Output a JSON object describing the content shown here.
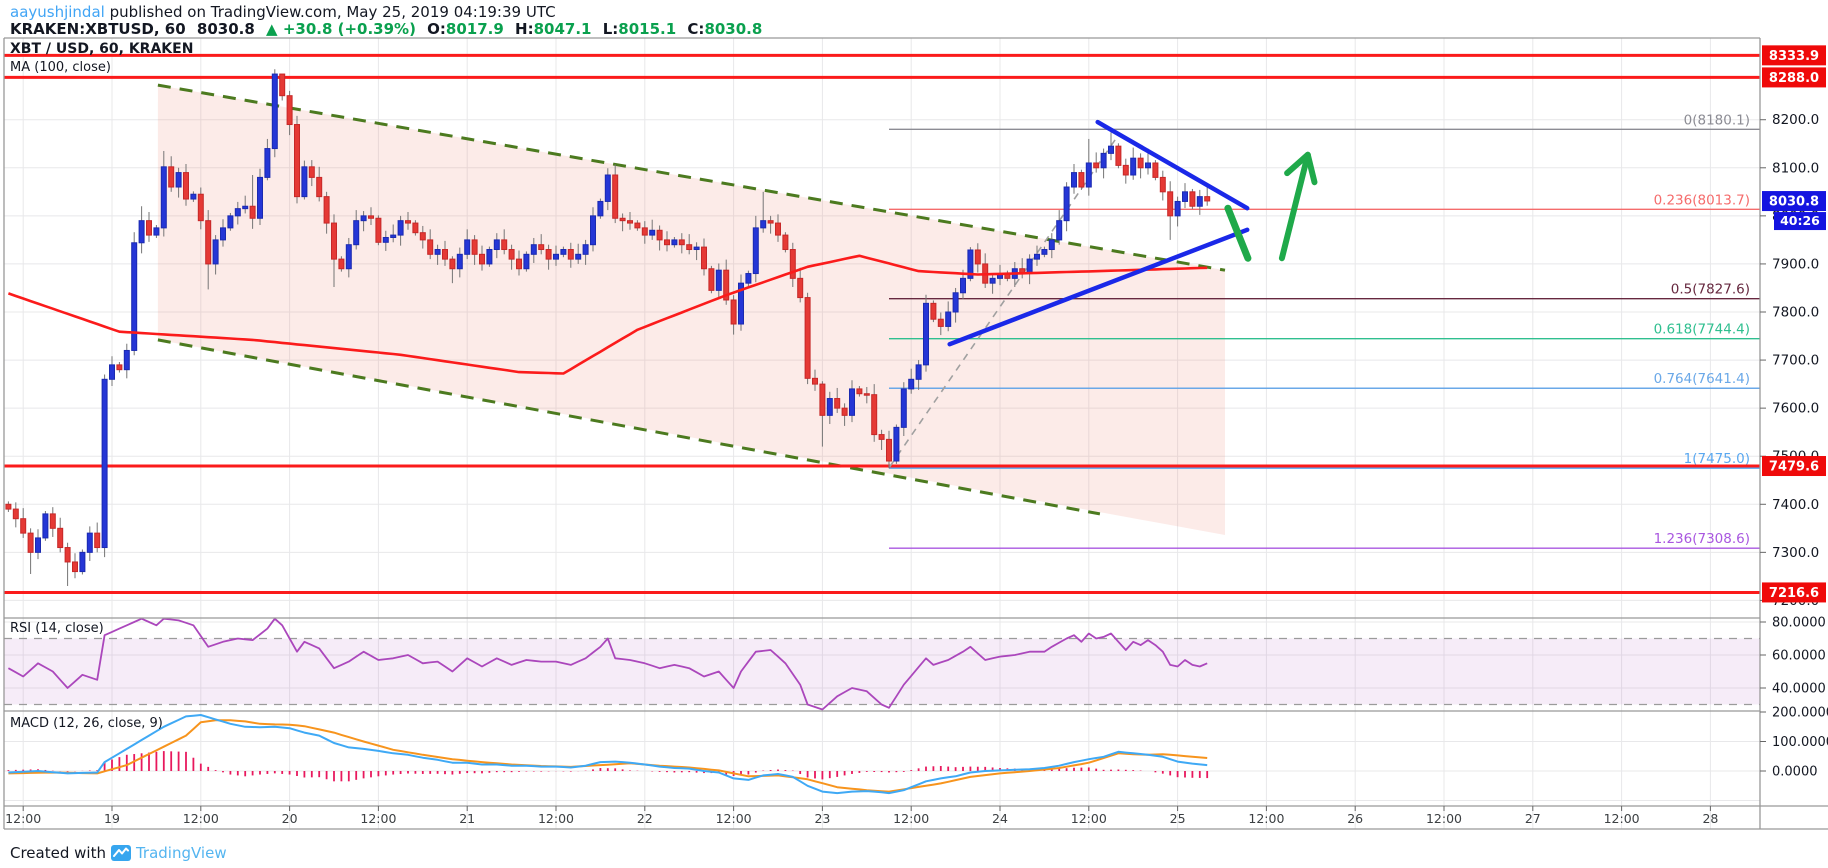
{
  "header": {
    "username": "aayushjindal",
    "attribution_rest": " published on TradingView.com, May 25, 2019 04:19:39 UTC",
    "symbol_title": "KRAKEN:XBTUSD, 60",
    "last_price": "8030.8",
    "change_arrow": "▲",
    "change_text": "+30.8 (+0.39%)",
    "o_label": "O:",
    "o_val": "8017.9",
    "h_label": "H:",
    "h_val": "8047.1",
    "l_label": "L:",
    "l_val": "8015.1",
    "c_label": "C:",
    "c_val": "8030.8"
  },
  "legend": {
    "symbol": "XBT / USD, 60, KRAKEN",
    "ma": "MA (100, close)"
  },
  "panels": {
    "rsi_label": "RSI (14, close)",
    "macd_label": "MACD (12, 26, close, 9)"
  },
  "footer": {
    "created_with": "Created with",
    "brand": "TradingView",
    "logo_icon": "tradingview-logo"
  },
  "colors": {
    "up_candle": "#2536d6",
    "up_border": "#1b2ab0",
    "down_candle": "#e53935",
    "down_border": "#c62828",
    "wick": "#757575",
    "ma_line": "#fb1b1b",
    "level_red": "#fb1b1b",
    "badge_red": "#ef0a0a",
    "badge_blue": "#1414e0",
    "rsi_line": "#ab47bc",
    "macd_line": "#3fa9f5",
    "signal_line": "#f7941d",
    "hist": "#e8185d",
    "wedge_fill": "rgba(235,130,115,0.16)",
    "wedge_dash": "#4c7a1f",
    "blue_annot": "#1a28e8",
    "green_annot": "#1fa94a",
    "gray_dash": "#a0a0a0",
    "grid": "#e8e8ea",
    "frame": "#999999",
    "axis_text": "#131722"
  },
  "chart_data": {
    "type": "candlestick",
    "title": "XBT / USD, 60, KRAKEN",
    "interval_hours": 1,
    "first_open": 7400,
    "closes": [
      7390,
      7370,
      7340,
      7300,
      7330,
      7380,
      7350,
      7310,
      7280,
      7260,
      7300,
      7340,
      7310,
      7660,
      7690,
      7680,
      7720,
      7944,
      7990,
      7960,
      7975,
      8102,
      8060,
      8090,
      8035,
      8045,
      7990,
      7900,
      7950,
      7975,
      8000,
      8015,
      8020,
      7995,
      8080,
      8140,
      8295,
      8250,
      8190,
      8040,
      8102,
      8080,
      8040,
      7985,
      7910,
      7890,
      7940,
      7990,
      8000,
      7995,
      7945,
      7955,
      7960,
      7990,
      7985,
      7965,
      7950,
      7920,
      7930,
      7910,
      7890,
      7920,
      7950,
      7920,
      7900,
      7930,
      7950,
      7930,
      7910,
      7890,
      7920,
      7940,
      7930,
      7910,
      7920,
      7930,
      7910,
      7920,
      7940,
      8000,
      8030,
      8085,
      7995,
      7990,
      7985,
      7975,
      7960,
      7970,
      7950,
      7940,
      7950,
      7940,
      7930,
      7935,
      7890,
      7845,
      7887,
      7825,
      7775,
      7860,
      7880,
      7975,
      7990,
      7985,
      7960,
      7930,
      7870,
      7830,
      7662,
      7650,
      7585,
      7620,
      7600,
      7585,
      7640,
      7630,
      7628,
      7545,
      7535,
      7490,
      7560,
      7640,
      7660,
      7690,
      7818,
      7785,
      7770,
      7800,
      7840,
      7870,
      7929,
      7900,
      7860,
      7870,
      7880,
      7870,
      7890,
      7880,
      7910,
      7920,
      7930,
      7950,
      7990,
      8060,
      8090,
      8060,
      8110,
      8100,
      8130,
      8145,
      8105,
      8085,
      8120,
      8100,
      8110,
      8080,
      8050,
      8000,
      8030,
      8050,
      8020,
      8040,
      8031
    ],
    "extreme_highs": {
      "18": 8020,
      "21": 8135,
      "33": 8085,
      "35": 8160,
      "36": 8305,
      "37": 8290,
      "40": 8115,
      "101": 8000,
      "102": 8050,
      "146": 8160,
      "149": 8174,
      "154": 8140
    },
    "extreme_lows": {
      "3": 7255,
      "8": 7230,
      "13": 7290,
      "27": 7847,
      "44": 7852,
      "60": 7860,
      "108": 7650,
      "110": 7520,
      "117": 7530,
      "119": 7475,
      "157": 7950
    },
    "ma100_keypoints": [
      [
        -1,
        7844
      ],
      [
        15,
        7759
      ],
      [
        33,
        7742
      ],
      [
        53,
        7711
      ],
      [
        69,
        7675
      ],
      [
        75,
        7672
      ],
      [
        85,
        7763
      ],
      [
        97,
        7835
      ],
      [
        108,
        7894
      ],
      [
        115,
        7917
      ],
      [
        123,
        7885
      ],
      [
        131,
        7878
      ],
      [
        145,
        7884
      ],
      [
        162,
        7892
      ]
    ],
    "rsi_keypoints": [
      [
        0,
        52
      ],
      [
        2,
        47
      ],
      [
        4,
        55
      ],
      [
        6,
        50
      ],
      [
        8,
        40
      ],
      [
        10,
        48
      ],
      [
        12,
        45
      ],
      [
        13,
        72
      ],
      [
        17,
        80
      ],
      [
        18,
        82
      ],
      [
        20,
        78
      ],
      [
        21,
        82
      ],
      [
        23,
        81
      ],
      [
        25,
        78
      ],
      [
        27,
        65
      ],
      [
        29,
        68
      ],
      [
        31,
        70
      ],
      [
        33,
        69
      ],
      [
        35,
        76
      ],
      [
        36,
        82
      ],
      [
        37,
        78
      ],
      [
        39,
        62
      ],
      [
        40,
        68
      ],
      [
        42,
        64
      ],
      [
        44,
        52
      ],
      [
        46,
        56
      ],
      [
        48,
        62
      ],
      [
        50,
        57
      ],
      [
        52,
        58
      ],
      [
        54,
        60
      ],
      [
        56,
        55
      ],
      [
        58,
        56
      ],
      [
        60,
        50
      ],
      [
        62,
        58
      ],
      [
        64,
        53
      ],
      [
        66,
        58
      ],
      [
        68,
        54
      ],
      [
        70,
        57
      ],
      [
        72,
        56
      ],
      [
        74,
        56
      ],
      [
        76,
        54
      ],
      [
        78,
        58
      ],
      [
        80,
        65
      ],
      [
        81,
        70
      ],
      [
        82,
        58
      ],
      [
        84,
        57
      ],
      [
        86,
        55
      ],
      [
        88,
        52
      ],
      [
        90,
        54
      ],
      [
        92,
        52
      ],
      [
        94,
        47
      ],
      [
        96,
        50
      ],
      [
        98,
        40
      ],
      [
        99,
        50
      ],
      [
        101,
        62
      ],
      [
        103,
        63
      ],
      [
        105,
        55
      ],
      [
        107,
        42
      ],
      [
        108,
        30
      ],
      [
        110,
        27
      ],
      [
        112,
        35
      ],
      [
        114,
        40
      ],
      [
        116,
        38
      ],
      [
        118,
        30
      ],
      [
        119,
        28
      ],
      [
        121,
        42
      ],
      [
        124,
        58
      ],
      [
        125,
        54
      ],
      [
        127,
        57
      ],
      [
        129,
        62
      ],
      [
        130,
        65
      ],
      [
        132,
        57
      ],
      [
        134,
        59
      ],
      [
        136,
        60
      ],
      [
        138,
        62
      ],
      [
        140,
        62
      ],
      [
        141,
        65
      ],
      [
        143,
        70
      ],
      [
        144,
        72
      ],
      [
        145,
        68
      ],
      [
        146,
        73
      ],
      [
        147,
        70
      ],
      [
        148,
        71
      ],
      [
        149,
        73
      ],
      [
        150,
        68
      ],
      [
        151,
        63
      ],
      [
        152,
        68
      ],
      [
        153,
        66
      ],
      [
        154,
        69
      ],
      [
        155,
        66
      ],
      [
        156,
        62
      ],
      [
        157,
        54
      ],
      [
        158,
        53
      ],
      [
        159,
        57
      ],
      [
        160,
        54
      ],
      [
        161,
        53
      ],
      [
        162,
        55
      ]
    ],
    "macd_keypoints": [
      [
        0,
        -5
      ],
      [
        4,
        0
      ],
      [
        8,
        -8
      ],
      [
        12,
        -5
      ],
      [
        13,
        30
      ],
      [
        17,
        90
      ],
      [
        21,
        150
      ],
      [
        24,
        185
      ],
      [
        26,
        190
      ],
      [
        28,
        175
      ],
      [
        30,
        160
      ],
      [
        32,
        150
      ],
      [
        34,
        148
      ],
      [
        36,
        150
      ],
      [
        38,
        145
      ],
      [
        40,
        130
      ],
      [
        42,
        120
      ],
      [
        44,
        95
      ],
      [
        46,
        80
      ],
      [
        48,
        75
      ],
      [
        50,
        68
      ],
      [
        52,
        60
      ],
      [
        54,
        55
      ],
      [
        56,
        45
      ],
      [
        58,
        38
      ],
      [
        60,
        28
      ],
      [
        62,
        28
      ],
      [
        64,
        22
      ],
      [
        66,
        22
      ],
      [
        68,
        18
      ],
      [
        70,
        18
      ],
      [
        72,
        15
      ],
      [
        74,
        15
      ],
      [
        76,
        12
      ],
      [
        78,
        18
      ],
      [
        80,
        30
      ],
      [
        82,
        32
      ],
      [
        84,
        28
      ],
      [
        86,
        22
      ],
      [
        88,
        15
      ],
      [
        90,
        10
      ],
      [
        92,
        8
      ],
      [
        94,
        0
      ],
      [
        96,
        -5
      ],
      [
        98,
        -25
      ],
      [
        100,
        -30
      ],
      [
        102,
        -15
      ],
      [
        104,
        -10
      ],
      [
        106,
        -20
      ],
      [
        108,
        -50
      ],
      [
        110,
        -70
      ],
      [
        112,
        -75
      ],
      [
        114,
        -70
      ],
      [
        116,
        -68
      ],
      [
        118,
        -72
      ],
      [
        119,
        -75
      ],
      [
        121,
        -65
      ],
      [
        124,
        -35
      ],
      [
        126,
        -25
      ],
      [
        128,
        -18
      ],
      [
        130,
        -5
      ],
      [
        132,
        0
      ],
      [
        134,
        2
      ],
      [
        136,
        4
      ],
      [
        138,
        6
      ],
      [
        140,
        10
      ],
      [
        142,
        18
      ],
      [
        144,
        30
      ],
      [
        146,
        40
      ],
      [
        148,
        48
      ],
      [
        150,
        65
      ],
      [
        152,
        60
      ],
      [
        154,
        55
      ],
      [
        156,
        48
      ],
      [
        158,
        32
      ],
      [
        160,
        25
      ],
      [
        162,
        20
      ]
    ],
    "signal_keypoints": [
      [
        0,
        -8
      ],
      [
        6,
        -5
      ],
      [
        12,
        -8
      ],
      [
        16,
        20
      ],
      [
        20,
        70
      ],
      [
        24,
        120
      ],
      [
        26,
        165
      ],
      [
        28,
        172
      ],
      [
        30,
        172
      ],
      [
        32,
        168
      ],
      [
        34,
        160
      ],
      [
        36,
        158
      ],
      [
        38,
        157
      ],
      [
        40,
        152
      ],
      [
        44,
        130
      ],
      [
        48,
        100
      ],
      [
        52,
        72
      ],
      [
        56,
        55
      ],
      [
        60,
        40
      ],
      [
        64,
        30
      ],
      [
        68,
        22
      ],
      [
        72,
        17
      ],
      [
        76,
        14
      ],
      [
        80,
        20
      ],
      [
        84,
        26
      ],
      [
        88,
        18
      ],
      [
        92,
        12
      ],
      [
        96,
        2
      ],
      [
        100,
        -18
      ],
      [
        104,
        -15
      ],
      [
        108,
        -28
      ],
      [
        112,
        -55
      ],
      [
        116,
        -65
      ],
      [
        119,
        -70
      ],
      [
        122,
        -58
      ],
      [
        126,
        -42
      ],
      [
        130,
        -20
      ],
      [
        134,
        -8
      ],
      [
        138,
        0
      ],
      [
        142,
        10
      ],
      [
        146,
        28
      ],
      [
        150,
        60
      ],
      [
        152,
        57
      ],
      [
        154,
        55
      ],
      [
        156,
        57
      ],
      [
        158,
        53
      ],
      [
        160,
        48
      ],
      [
        162,
        44
      ]
    ],
    "price_axis_ticks": [
      [
        8200,
        "8200.0"
      ],
      [
        8100,
        "8100.0"
      ],
      [
        8000,
        "8000.0"
      ],
      [
        7900,
        "7900.0"
      ],
      [
        7800,
        "7800.0"
      ],
      [
        7700,
        "7700.0"
      ],
      [
        7600,
        "7600.0"
      ],
      [
        7500,
        "7500.0"
      ],
      [
        7400,
        "7400.0"
      ],
      [
        7300,
        "7300.0"
      ],
      [
        7200,
        "7200.0"
      ]
    ],
    "time_axis_ticks": [
      [
        2,
        "12:00"
      ],
      [
        14,
        "19"
      ],
      [
        26,
        "12:00"
      ],
      [
        38,
        "20"
      ],
      [
        50,
        "12:00"
      ],
      [
        62,
        "21"
      ],
      [
        74,
        "12:00"
      ],
      [
        86,
        "22"
      ],
      [
        98,
        "12:00"
      ],
      [
        110,
        "23"
      ],
      [
        122,
        "12:00"
      ],
      [
        134,
        "24"
      ],
      [
        146,
        "12:00"
      ],
      [
        158,
        "25"
      ],
      [
        170,
        "12:00"
      ],
      [
        182,
        "26"
      ],
      [
        194,
        "12:00"
      ],
      [
        206,
        "27"
      ],
      [
        218,
        "12:00"
      ],
      [
        230,
        "28"
      ]
    ],
    "rsi_axis_ticks": [
      [
        80,
        "80.0000"
      ],
      [
        60,
        "60.0000"
      ],
      [
        40,
        "40.0000"
      ]
    ],
    "rsi_band": [
      30,
      70
    ],
    "macd_axis_ticks": [
      [
        200,
        "200.0000"
      ],
      [
        100,
        "100.0000"
      ],
      [
        0,
        "0.0000"
      ]
    ],
    "macd_grid": [
      100,
      0,
      -100
    ],
    "red_levels": [
      8333.9,
      8288.0,
      7479.6,
      7216.6
    ],
    "badges": [
      {
        "text": "8333.9",
        "price": 8333.9,
        "kind": "red"
      },
      {
        "text": "8288.0",
        "price": 8288.0,
        "kind": "red"
      },
      {
        "text": "8030.8",
        "price": 8030.8,
        "kind": "blue"
      },
      {
        "text": "7479.6",
        "price": 7479.6,
        "kind": "red"
      },
      {
        "text": "7216.6",
        "price": 7216.6,
        "kind": "red"
      }
    ],
    "countdown": {
      "text": "40:26",
      "below_price": 8030.8
    },
    "fib_levels": [
      {
        "label": "0(8180.1)",
        "price": 8180.1,
        "color": "#8c8c94"
      },
      {
        "label": "0.236(8013.7)",
        "price": 8013.7,
        "color": "#f56c6c"
      },
      {
        "label": "0.5(7827.6)",
        "price": 7827.6,
        "color": "#66283f"
      },
      {
        "label": "0.618(7744.4)",
        "price": 7744.4,
        "color": "#2fbf8f"
      },
      {
        "label": "0.764(7641.4)",
        "price": 7641.4,
        "color": "#6aa8e8"
      },
      {
        "label": "1(7475.0)",
        "price": 7475.0,
        "color": "#5aa8f0"
      },
      {
        "label": "1.236(7308.6)",
        "price": 7308.6,
        "color": "#a957e0"
      }
    ],
    "fib_start_hour": 119,
    "annotations": {
      "wedge_fill_poly": [
        [
          20.2,
          8272
        ],
        [
          164.4,
          7887
        ],
        [
          164.4,
          7336
        ],
        [
          20.2,
          7742
        ]
      ],
      "wedge_upper": [
        [
          20.2,
          8272
        ],
        [
          164.4,
          7887
        ]
      ],
      "wedge_lower": [
        [
          20.2,
          7742
        ],
        [
          147.5,
          7380
        ]
      ],
      "gray_dashed": [
        [
          119.1,
          7478
        ],
        [
          150,
          8168
        ]
      ],
      "blue_upper": [
        [
          147.2,
          8195
        ],
        [
          167.4,
          8016
        ]
      ],
      "blue_lower": [
        [
          127.2,
          7733
        ],
        [
          167.4,
          7971
        ]
      ],
      "green_stroke": [
        [
          164.8,
          8016
        ],
        [
          167.5,
          7912
        ]
      ],
      "arrow_shaft": [
        [
          172.1,
          7912
        ],
        [
          175.6,
          8127
        ]
      ],
      "arrow_head": [
        [
          172.8,
          8089
        ],
        [
          175.6,
          8127
        ],
        [
          176.5,
          8070
        ]
      ]
    }
  }
}
